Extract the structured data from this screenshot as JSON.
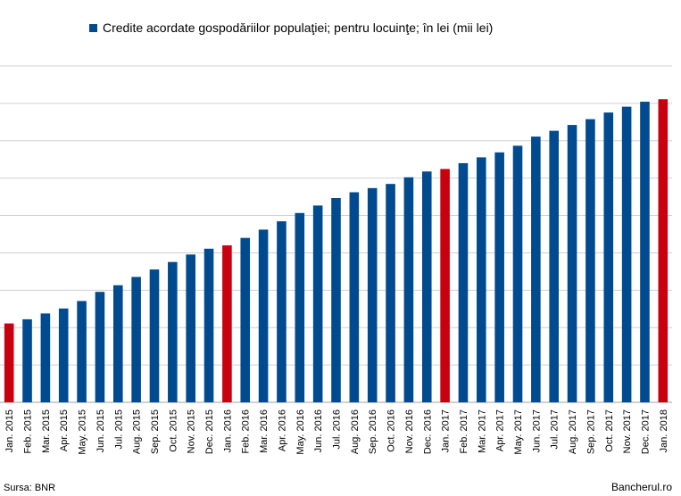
{
  "colors": {
    "regular": "#004a8f",
    "highlight": "#c8000f",
    "grid": "#d0d0d0"
  },
  "chart_data": {
    "type": "bar",
    "legend": "Credite acordate gospodăriilor populaţiei; pentru locuinţe; în lei (mii lei)",
    "legend_position": "top",
    "grid": true,
    "y_tick_labels_shown": false,
    "ylim": [
      0,
      36000000
    ],
    "categories": [
      "Jan. 2015",
      "Feb. 2015",
      "Mar. 2015",
      "Apr. 2015",
      "May. 2015",
      "Jun. 2015",
      "Jul. 2015",
      "Aug. 2015",
      "Sep. 2015",
      "Oct. 2015",
      "Nov. 2015",
      "Dec. 2015",
      "Jan. 2016",
      "Feb. 2016",
      "Mar. 2016",
      "Apr. 2016",
      "May. 2016",
      "Jun. 2016",
      "Jul. 2016",
      "Aug. 2016",
      "Sep. 2016",
      "Oct. 2016",
      "Nov. 2016",
      "Dec. 2016",
      "Jan. 2017",
      "Feb. 2017",
      "Mar. 2017",
      "Apr. 2017",
      "May. 2017",
      "Jun. 2017",
      "Jul. 2017",
      "Aug. 2017",
      "Sep. 2017",
      "Oct. 2017",
      "Nov. 2017",
      "Dec. 2017",
      "Jan. 2018"
    ],
    "values": [
      9500000,
      10000000,
      10700000,
      11300000,
      12200000,
      13300000,
      14100000,
      15100000,
      16000000,
      16900000,
      17800000,
      18500000,
      18900000,
      19800000,
      20800000,
      21800000,
      22800000,
      23700000,
      24600000,
      25300000,
      25800000,
      26300000,
      27100000,
      27800000,
      28100000,
      28800000,
      29500000,
      30100000,
      30900000,
      32000000,
      32700000,
      33400000,
      34100000,
      34900000,
      35600000,
      36200000,
      36500000
    ],
    "highlight_indices": [
      0,
      12,
      24,
      36
    ]
  },
  "footer": {
    "source": "Sursa: BNR",
    "brand": "Bancherul.ro"
  }
}
